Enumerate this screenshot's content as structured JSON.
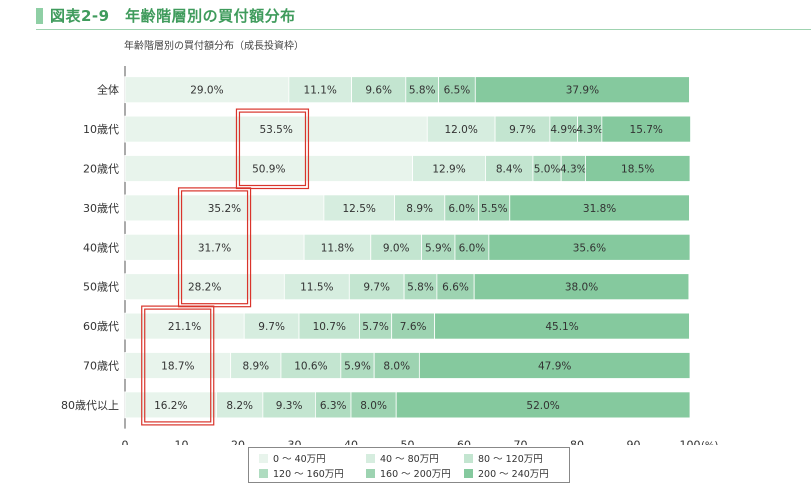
{
  "header": {
    "title": "図表2-9　年齢階層別の買付額分布"
  },
  "chart_data": {
    "type": "bar",
    "orientation": "horizontal",
    "stacked": true,
    "title": "年齢階層別の買付額分布（成長投資枠）",
    "categories": [
      "全体",
      "10歳代",
      "20歳代",
      "30歳代",
      "40歳代",
      "50歳代",
      "60歳代",
      "70歳代",
      "80歳代以上"
    ],
    "series": [
      {
        "name": "0 ～ 40万円",
        "color": "#e8f4ec",
        "values": [
          29.0,
          53.5,
          50.9,
          35.2,
          31.7,
          28.2,
          21.1,
          18.7,
          16.2
        ]
      },
      {
        "name": "40 ～ 80万円",
        "color": "#d6eddf",
        "values": [
          11.1,
          12.0,
          12.9,
          12.5,
          11.8,
          11.5,
          9.7,
          8.9,
          8.2
        ]
      },
      {
        "name": "80 ～ 120万円",
        "color": "#c3e5d0",
        "values": [
          9.6,
          9.7,
          8.4,
          8.9,
          9.0,
          9.7,
          10.7,
          10.6,
          9.3
        ]
      },
      {
        "name": "120 ～ 160万円",
        "color": "#afdcc0",
        "values": [
          5.8,
          4.9,
          5.0,
          6.0,
          5.9,
          5.8,
          5.7,
          5.9,
          6.3
        ]
      },
      {
        "name": "160 ～ 200万円",
        "color": "#9dd3b1",
        "values": [
          6.5,
          4.3,
          4.3,
          5.5,
          6.0,
          6.6,
          7.6,
          8.0,
          8.0
        ]
      },
      {
        "name": "200 ～ 240万円",
        "color": "#85c99e",
        "values": [
          37.9,
          15.7,
          18.5,
          31.8,
          35.6,
          38.0,
          45.1,
          47.9,
          52.0
        ]
      }
    ],
    "value_labels": [
      [
        "29.0%",
        "53.5%",
        "50.9%",
        "35.2%",
        "31.7%",
        "28.2%",
        "21.1%",
        "18.7%",
        "16.2%"
      ],
      [
        "11.1%",
        "12.0%",
        "12.9%",
        "12.5%",
        "11.8%",
        "11.5%",
        "9.7%",
        "8.9%",
        "8.2%"
      ],
      [
        "9.6%",
        "9.7%",
        "8.4%",
        "8.9%",
        "9.0%",
        "9.7%",
        "10.7%",
        "10.6%",
        "9.3%"
      ],
      [
        "5.8%",
        "4.9%",
        "5.0%",
        "6.0%",
        "5.9%",
        "5.8%",
        "5.7%",
        "5.9%",
        "6.3%"
      ],
      [
        "6.5%",
        "4.3%",
        "4.3%",
        "5.5%",
        "6.0%",
        "6.6%",
        "7.6%",
        "8.0%",
        "8.0%"
      ],
      [
        "37.9%",
        "15.7%",
        "18.5%",
        "31.8%",
        "35.6%",
        "38.0%",
        "45.1%",
        "47.9%",
        "52.0%"
      ]
    ],
    "xlim": [
      0,
      100
    ],
    "xticks": [
      "0",
      "10",
      "20",
      "30",
      "40",
      "50",
      "60",
      "70",
      "80",
      "90",
      "100"
    ],
    "xunit": "(%)",
    "legend_position": "bottom",
    "highlight_color": "#d9342b",
    "highlights": [
      {
        "rows": [
          "10歳代",
          "20歳代"
        ],
        "series": "0 ～ 40万円"
      },
      {
        "rows": [
          "30歳代",
          "40歳代",
          "50歳代"
        ],
        "series": "0 ～ 40万円"
      },
      {
        "rows": [
          "60歳代",
          "70歳代",
          "80歳代以上"
        ],
        "series": "0 ～ 40万円"
      }
    ]
  }
}
